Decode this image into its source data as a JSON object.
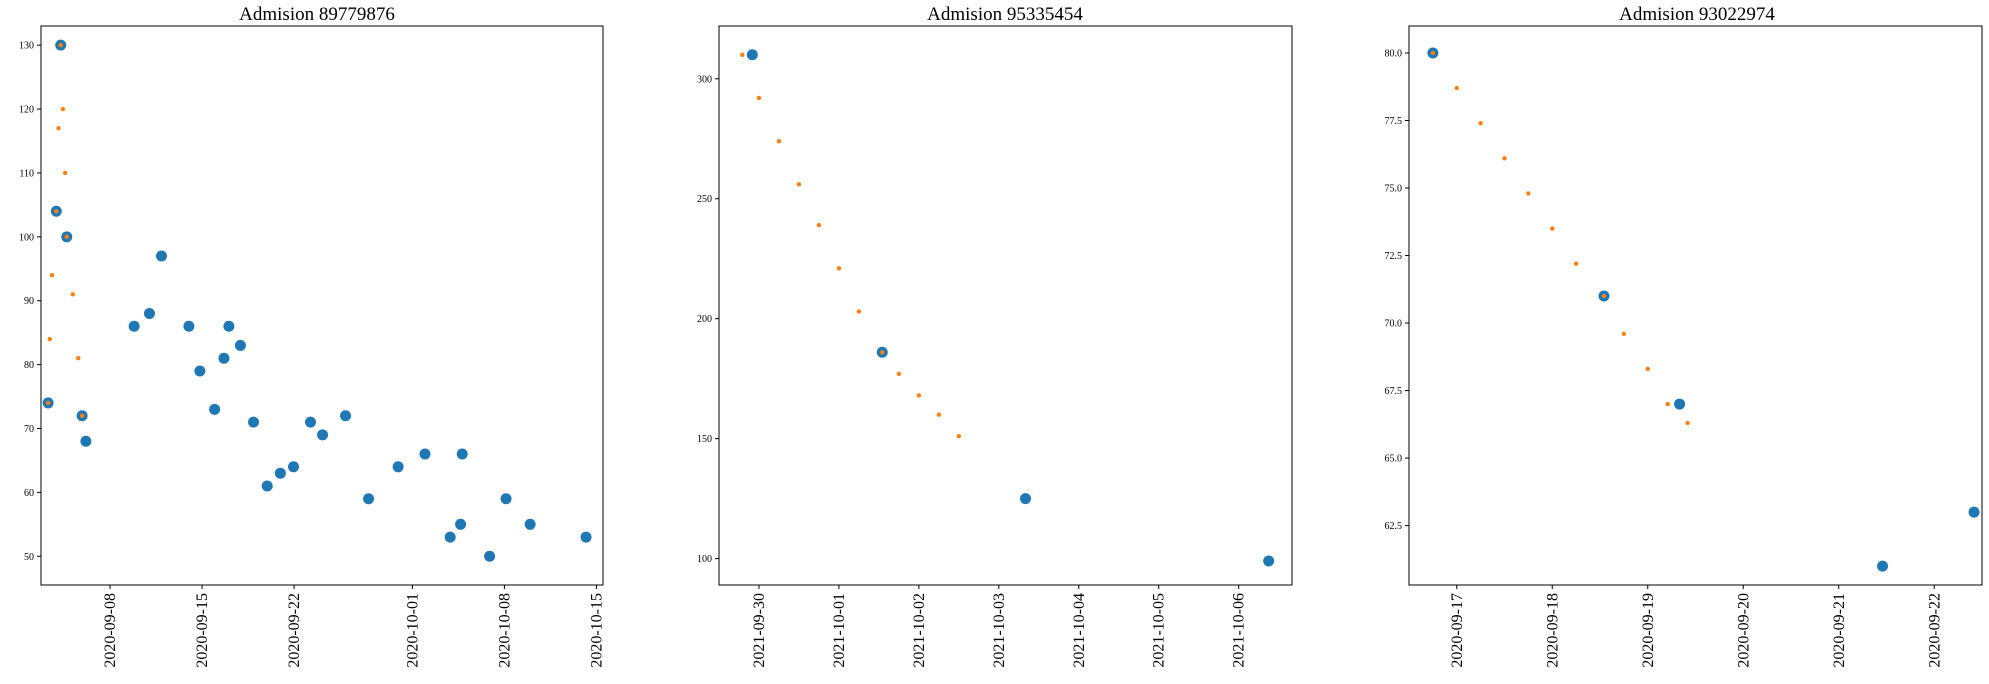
{
  "colors": {
    "observed": "#1f77b4",
    "predicted": "#ff7f0e",
    "axis": "#000000"
  },
  "chart_data": [
    {
      "type": "scatter",
      "title": "Admision 89779876",
      "xlabel": "",
      "ylabel": "",
      "x_is_date": true,
      "xlim": [
        "2020-09-02 18:00",
        "2020-10-15 12:00"
      ],
      "ylim": [
        45.5,
        133
      ],
      "yticks": [
        50,
        60,
        70,
        80,
        90,
        100,
        110,
        120,
        130
      ],
      "ytick_labels": [
        "50",
        "60",
        "70",
        "80",
        "90",
        "100",
        "110",
        "120",
        "130"
      ],
      "xticks": [
        "2020-09-08",
        "2020-09-15",
        "2020-09-22",
        "2020-10-01",
        "2020-10-08",
        "2020-10-15"
      ],
      "xtick_labels": [
        "2020-09-08",
        "2020-09-15",
        "2020-09-22",
        "2020-10-01",
        "2020-10-08",
        "2020-10-15"
      ],
      "grid": false,
      "legend": false,
      "series": [
        {
          "marker": "large-dot",
          "color": "#1f77b4",
          "points": [
            [
              "2020-09-03 07:00",
              74
            ],
            [
              "2020-09-03 22:00",
              104
            ],
            [
              "2020-09-04 06:00",
              130
            ],
            [
              "2020-09-04 17:00",
              100
            ],
            [
              "2020-09-05 21:00",
              72
            ],
            [
              "2020-09-06 04:00",
              68
            ],
            [
              "2020-09-09 20:00",
              86
            ],
            [
              "2020-09-11 00:00",
              88
            ],
            [
              "2020-09-11 22:00",
              97
            ],
            [
              "2020-09-14 00:00",
              86
            ],
            [
              "2020-09-14 20:00",
              79
            ],
            [
              "2020-09-15 23:00",
              73
            ],
            [
              "2020-09-16 16:00",
              81
            ],
            [
              "2020-09-17 01:00",
              86
            ],
            [
              "2020-09-17 22:00",
              83
            ],
            [
              "2020-09-18 22:00",
              71
            ],
            [
              "2020-09-19 23:00",
              61
            ],
            [
              "2020-09-20 23:00",
              63
            ],
            [
              "2020-09-21 23:00",
              64
            ],
            [
              "2020-09-23 06:00",
              71
            ],
            [
              "2020-09-24 04:00",
              69
            ],
            [
              "2020-09-25 22:00",
              72
            ],
            [
              "2020-09-27 16:00",
              59
            ],
            [
              "2020-09-29 22:00",
              64
            ],
            [
              "2020-10-01 23:00",
              66
            ],
            [
              "2020-10-03 21:00",
              53
            ],
            [
              "2020-10-04 16:00",
              55
            ],
            [
              "2020-10-04 19:00",
              66
            ],
            [
              "2020-10-06 21:00",
              50
            ],
            [
              "2020-10-08 03:00",
              59
            ],
            [
              "2020-10-09 23:00",
              55
            ],
            [
              "2020-10-14 05:00",
              53
            ]
          ]
        },
        {
          "marker": "small-dot",
          "color": "#ff7f0e",
          "points": [
            [
              "2020-09-03 07:00",
              74
            ],
            [
              "2020-09-03 10:00",
              84
            ],
            [
              "2020-09-03 14:00",
              94
            ],
            [
              "2020-09-03 22:00",
              104
            ],
            [
              "2020-09-04 02:00",
              117
            ],
            [
              "2020-09-04 06:00",
              130
            ],
            [
              "2020-09-04 10:00",
              120
            ],
            [
              "2020-09-04 14:00",
              110
            ],
            [
              "2020-09-04 17:00",
              100
            ],
            [
              "2020-09-05 04:00",
              91
            ],
            [
              "2020-09-05 14:00",
              81
            ],
            [
              "2020-09-05 21:00",
              72
            ]
          ]
        }
      ]
    },
    {
      "type": "scatter",
      "title": "Admision 95335454",
      "xlabel": "",
      "ylabel": "",
      "x_is_date": true,
      "xlim": [
        "2021-09-29 12:00",
        "2021-10-06 16:00"
      ],
      "ylim": [
        89,
        322
      ],
      "yticks": [
        100,
        150,
        200,
        250,
        300
      ],
      "ytick_labels": [
        "100",
        "150",
        "200",
        "250",
        "300"
      ],
      "xticks": [
        "2021-09-30",
        "2021-10-01",
        "2021-10-02",
        "2021-10-03",
        "2021-10-04",
        "2021-10-05",
        "2021-10-06"
      ],
      "xtick_labels": [
        "2021-09-30",
        "2021-10-01",
        "2021-10-02",
        "2021-10-03",
        "2021-10-04",
        "2021-10-05",
        "2021-10-06"
      ],
      "grid": false,
      "legend": false,
      "series": [
        {
          "marker": "large-dot",
          "color": "#1f77b4",
          "points": [
            [
              "2021-09-29 22:00",
              310
            ],
            [
              "2021-10-01 13:00",
              186
            ],
            [
              "2021-10-03 08:00",
              125
            ],
            [
              "2021-10-06 09:00",
              99
            ]
          ]
        },
        {
          "marker": "small-dot",
          "color": "#ff7f0e",
          "points": [
            [
              "2021-09-29 19:00",
              310
            ],
            [
              "2021-09-30 00:00",
              292
            ],
            [
              "2021-09-30 06:00",
              274
            ],
            [
              "2021-09-30 12:00",
              256
            ],
            [
              "2021-09-30 18:00",
              239
            ],
            [
              "2021-10-01 00:00",
              221
            ],
            [
              "2021-10-01 06:00",
              203
            ],
            [
              "2021-10-01 13:00",
              186
            ],
            [
              "2021-10-01 18:00",
              177
            ],
            [
              "2021-10-02 00:00",
              168
            ],
            [
              "2021-10-02 06:00",
              160
            ],
            [
              "2021-10-02 12:00",
              151
            ]
          ]
        }
      ]
    },
    {
      "type": "scatter",
      "title": "Admision 93022974",
      "xlabel": "",
      "ylabel": "",
      "x_is_date": true,
      "xlim": [
        "2020-09-16 12:00",
        "2020-09-22 12:00"
      ],
      "ylim": [
        60.3,
        81.0
      ],
      "yticks": [
        62.5,
        65.0,
        67.5,
        70.0,
        72.5,
        75.0,
        77.5,
        80.0
      ],
      "ytick_labels": [
        "62.5",
        "65.0",
        "67.5",
        "70.0",
        "72.5",
        "75.0",
        "77.5",
        "80.0"
      ],
      "xticks": [
        "2020-09-17",
        "2020-09-18",
        "2020-09-19",
        "2020-09-20",
        "2020-09-21",
        "2020-09-22"
      ],
      "xtick_labels": [
        "2020-09-17",
        "2020-09-18",
        "2020-09-19",
        "2020-09-20",
        "2020-09-21",
        "2020-09-22"
      ],
      "grid": false,
      "legend": false,
      "series": [
        {
          "marker": "large-dot",
          "color": "#1f77b4",
          "points": [
            [
              "2020-09-16 18:00",
              80
            ],
            [
              "2020-09-18 13:00",
              71
            ],
            [
              "2020-09-19 08:00",
              67
            ],
            [
              "2020-09-21 11:00",
              61
            ],
            [
              "2020-09-22 10:00",
              63
            ]
          ]
        },
        {
          "marker": "small-dot",
          "color": "#ff7f0e",
          "points": [
            [
              "2020-09-16 18:00",
              80
            ],
            [
              "2020-09-17 00:00",
              78.7
            ],
            [
              "2020-09-17 06:00",
              77.4
            ],
            [
              "2020-09-17 12:00",
              76.1
            ],
            [
              "2020-09-17 18:00",
              74.8
            ],
            [
              "2020-09-18 00:00",
              73.5
            ],
            [
              "2020-09-18 06:00",
              72.2
            ],
            [
              "2020-09-18 13:00",
              71
            ],
            [
              "2020-09-18 18:00",
              69.6
            ],
            [
              "2020-09-19 00:00",
              68.3
            ],
            [
              "2020-09-19 05:00",
              67
            ],
            [
              "2020-09-19 10:00",
              66.3
            ]
          ]
        }
      ]
    }
  ]
}
